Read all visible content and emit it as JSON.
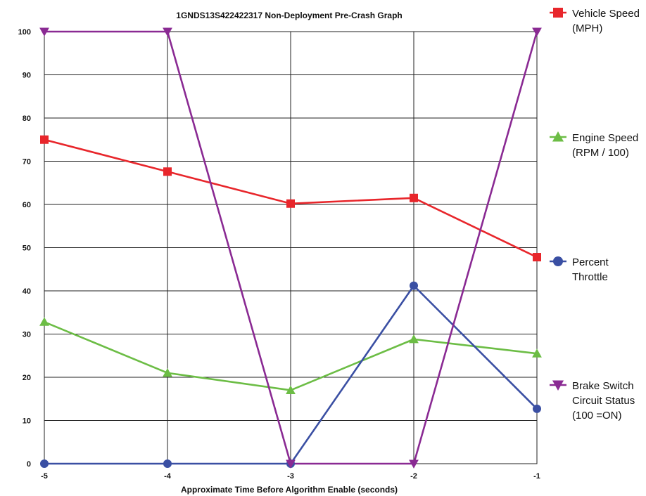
{
  "chart_data": {
    "type": "line",
    "title": "1GNDS13S422422317 Non-Deployment Pre-Crash Graph",
    "xlabel": "Approximate Time Before Algorithm Enable (seconds)",
    "ylabel": "",
    "x": [
      -5,
      -4,
      -3,
      -2,
      -1
    ],
    "x_tick_labels": [
      "-5",
      "-4",
      "-3",
      "-2",
      "-1"
    ],
    "xlim": [
      -5,
      -1
    ],
    "ylim": [
      0,
      100
    ],
    "y_ticks": [
      0,
      10,
      20,
      30,
      40,
      50,
      60,
      70,
      80,
      90,
      100
    ],
    "y_tick_labels": [
      "0",
      "10",
      "20",
      "30",
      "40",
      "50",
      "60",
      "70",
      "80",
      "90",
      "100"
    ],
    "grid": true,
    "legend_position": "right",
    "series": [
      {
        "name": "Vehicle Speed (MPH)",
        "legend_lines": [
          "Vehicle Speed",
          "(MPH)"
        ],
        "values": [
          75,
          67.6,
          60.2,
          61.5,
          47.8
        ],
        "color": "#e8262b",
        "marker": "square"
      },
      {
        "name": "Engine Speed (RPM / 100)",
        "legend_lines": [
          "Engine Speed",
          "(RPM / 100)"
        ],
        "values": [
          32.8,
          21,
          17,
          28.8,
          25.5
        ],
        "color": "#6cbd45",
        "marker": "triangle-up"
      },
      {
        "name": "Percent Throttle",
        "legend_lines": [
          "Percent",
          "Throttle"
        ],
        "values": [
          0,
          0,
          0,
          41.2,
          12.7
        ],
        "color": "#3a4fa3",
        "marker": "circle"
      },
      {
        "name": "Brake Switch Circuit Status (100 =ON)",
        "legend_lines": [
          "Brake Switch",
          "Circuit Status",
          "(100 =ON)"
        ],
        "values": [
          100,
          100,
          0,
          0,
          100
        ],
        "color": "#8a2a93",
        "marker": "triangle-down"
      }
    ]
  }
}
